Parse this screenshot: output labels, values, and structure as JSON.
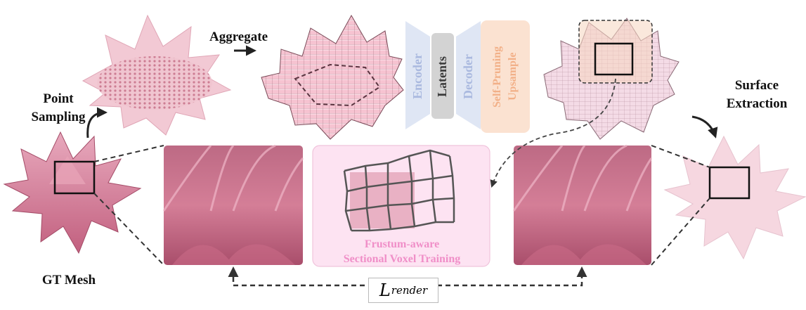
{
  "labels": {
    "point_sampling": [
      "Point",
      "Sampling"
    ],
    "aggregate": "Aggregate",
    "gt_mesh": "GT Mesh",
    "surface_extraction": [
      "Surface",
      "Extraction"
    ],
    "frustum": [
      "Frustum-aware",
      "Sectional Voxel Training"
    ],
    "loss_main": "L",
    "loss_sub": "render"
  },
  "pipeline_blocks": {
    "encoder": "Encoder",
    "latents": "Latents",
    "decoder": "Decoder",
    "upsample": [
      "Self-Pruning",
      "Upsample"
    ]
  },
  "colors": {
    "encoder_fill": "#dfe6f4",
    "encoder_text": "#aab9df",
    "latents_fill": "#d3d3d3",
    "latents_text": "#3a3a3a",
    "decoder_fill": "#dfe6f4",
    "decoder_text": "#aab9df",
    "upsample_fill": "#fbe2d1",
    "upsample_text": "#f2b088",
    "frustum_bg": "#fde3f2",
    "frustum_text": "#f08fc8",
    "flower": "#d97a98",
    "voxel": "#f4b8c8"
  }
}
